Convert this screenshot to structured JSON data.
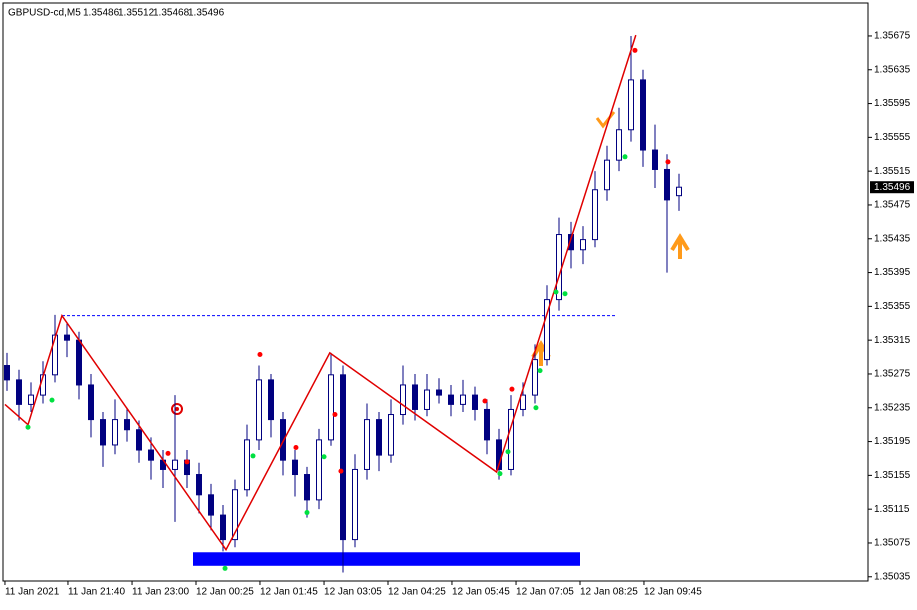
{
  "chart_data": {
    "type": "candlestick",
    "title": "GBPUSD-cd,M5",
    "ohlc": [
      [
        1.35285,
        1.353,
        1.35255,
        1.35268
      ],
      [
        1.35268,
        1.3528,
        1.3522,
        1.35239
      ],
      [
        1.35239,
        1.35265,
        1.3523,
        1.3525
      ],
      [
        1.3525,
        1.3529,
        1.3524,
        1.35274
      ],
      [
        1.35274,
        1.35345,
        1.35265,
        1.35321
      ],
      [
        1.35321,
        1.35335,
        1.35295,
        1.35315
      ],
      [
        1.35315,
        1.35325,
        1.35245,
        1.35262
      ],
      [
        1.35262,
        1.35275,
        1.352,
        1.35221
      ],
      [
        1.35221,
        1.3523,
        1.35165,
        1.35191
      ],
      [
        1.35191,
        1.35245,
        1.3518,
        1.35221
      ],
      [
        1.35221,
        1.35235,
        1.35195,
        1.35209
      ],
      [
        1.35209,
        1.3522,
        1.3517,
        1.35185
      ],
      [
        1.35185,
        1.352,
        1.3515,
        1.35173
      ],
      [
        1.35173,
        1.35185,
        1.3514,
        1.35162
      ],
      [
        1.35162,
        1.3525,
        1.351,
        1.35173
      ],
      [
        1.35173,
        1.35185,
        1.3514,
        1.35156
      ],
      [
        1.35156,
        1.3517,
        1.3511,
        1.35132
      ],
      [
        1.35132,
        1.35145,
        1.3509,
        1.35108
      ],
      [
        1.35108,
        1.3512,
        1.35065,
        1.35079
      ],
      [
        1.35079,
        1.3515,
        1.3507,
        1.35138
      ],
      [
        1.35138,
        1.35215,
        1.3513,
        1.35197
      ],
      [
        1.35197,
        1.35285,
        1.35185,
        1.35268
      ],
      [
        1.35268,
        1.35275,
        1.352,
        1.35221
      ],
      [
        1.35221,
        1.3523,
        1.35155,
        1.35173
      ],
      [
        1.35173,
        1.35185,
        1.3513,
        1.35156
      ],
      [
        1.35156,
        1.35165,
        1.35105,
        1.35126
      ],
      [
        1.35126,
        1.3521,
        1.35115,
        1.35197
      ],
      [
        1.35197,
        1.353,
        1.3519,
        1.35274
      ],
      [
        1.35274,
        1.35285,
        1.3504,
        1.35079
      ],
      [
        1.35079,
        1.3518,
        1.3507,
        1.35162
      ],
      [
        1.35162,
        1.3524,
        1.3515,
        1.35221
      ],
      [
        1.35221,
        1.3523,
        1.3516,
        1.35179
      ],
      [
        1.35179,
        1.35245,
        1.3517,
        1.35227
      ],
      [
        1.35227,
        1.35285,
        1.35215,
        1.35262
      ],
      [
        1.35262,
        1.35275,
        1.3522,
        1.35233
      ],
      [
        1.35233,
        1.35275,
        1.35225,
        1.35256
      ],
      [
        1.35256,
        1.3527,
        1.3524,
        1.3525
      ],
      [
        1.3525,
        1.35262,
        1.35225,
        1.35239
      ],
      [
        1.35239,
        1.35268,
        1.3523,
        1.3525
      ],
      [
        1.3525,
        1.3526,
        1.3522,
        1.35233
      ],
      [
        1.35233,
        1.35245,
        1.3518,
        1.35197
      ],
      [
        1.35197,
        1.3521,
        1.3515,
        1.35162
      ],
      [
        1.35162,
        1.3525,
        1.35155,
        1.35233
      ],
      [
        1.35233,
        1.35265,
        1.35225,
        1.3525
      ],
      [
        1.3525,
        1.3531,
        1.3524,
        1.35292
      ],
      [
        1.35292,
        1.3538,
        1.35285,
        1.35363
      ],
      [
        1.35363,
        1.3546,
        1.3535,
        1.3544
      ],
      [
        1.3544,
        1.35455,
        1.354,
        1.35422
      ],
      [
        1.35422,
        1.3545,
        1.35405,
        1.35434
      ],
      [
        1.35434,
        1.35515,
        1.35425,
        1.35493
      ],
      [
        1.35493,
        1.35545,
        1.3548,
        1.35528
      ],
      [
        1.35528,
        1.3559,
        1.35515,
        1.35564
      ],
      [
        1.35564,
        1.35675,
        1.3555,
        1.35623
      ],
      [
        1.35623,
        1.35635,
        1.3552,
        1.3554
      ],
      [
        1.3554,
        1.3557,
        1.35495,
        1.35517
      ],
      [
        1.35517,
        1.35535,
        1.35395,
        1.35481
      ],
      [
        1.35486,
        1.35512,
        1.35468,
        1.35496
      ]
    ],
    "zigzag": {
      "color": "#e00000",
      "x": [
        -0.17,
        1.75,
        4.58,
        18.25,
        26.9,
        40.8,
        52.4
      ],
      "values": [
        1.35239,
        1.35215,
        1.35344,
        1.35067,
        1.353,
        1.35159,
        1.35676
      ]
    },
    "up_fractals": {
      "color": "#ff0000",
      "x": [
        21.08,
        24.08,
        27.33,
        27.83,
        39.83,
        42.08,
        52.33,
        55.08,
        13.42,
        15.0
      ],
      "values": [
        1.35298,
        1.35188,
        1.35227,
        1.3516,
        1.35243,
        1.35257,
        1.35658,
        1.35526,
        1.35181,
        1.35171
      ]
    },
    "down_fractals": {
      "color": "#00e040",
      "x": [
        1.75,
        3.75,
        18.17,
        20.5,
        25.0,
        26.42,
        41.08,
        41.75,
        44.08,
        44.42,
        45.75,
        46.5,
        51.5
      ],
      "values": [
        1.35212,
        1.35244,
        1.35045,
        1.35178,
        1.35111,
        1.35177,
        1.35157,
        1.35183,
        1.35235,
        1.35279,
        1.35372,
        1.3537,
        1.35532
      ]
    },
    "level": 1.35344,
    "zone": [
      1.35048,
      1.35064
    ],
    "ylim": [
      1.3503,
      1.35714
    ],
    "yticks": [
      1.35675,
      1.35635,
      1.35595,
      1.35555,
      1.35515,
      1.35475,
      1.35435,
      1.35395,
      1.35355,
      1.35315,
      1.35275,
      1.35235,
      1.35195,
      1.35155,
      1.35115,
      1.35075,
      1.35035
    ],
    "xticks": [
      {
        "value": -0.17,
        "label": "11 Jan 2021"
      },
      {
        "value": 5.08,
        "label": "11 Jan 21:40"
      },
      {
        "value": 10.42,
        "label": "11 Jan 23:00"
      },
      {
        "value": 15.75,
        "label": "12 Jan 00:25"
      },
      {
        "value": 21.08,
        "label": "12 Jan 01:45"
      },
      {
        "value": 26.42,
        "label": "12 Jan 03:05"
      },
      {
        "value": 31.75,
        "label": "12 Jan 04:25"
      },
      {
        "value": 37.08,
        "label": "12 Jan 05:45"
      },
      {
        "value": 42.42,
        "label": "12 Jan 07:05"
      },
      {
        "value": 47.75,
        "label": "12 Jan 08:25"
      },
      {
        "value": 53.08,
        "label": "12 Jan 09:45"
      }
    ]
  }
}
